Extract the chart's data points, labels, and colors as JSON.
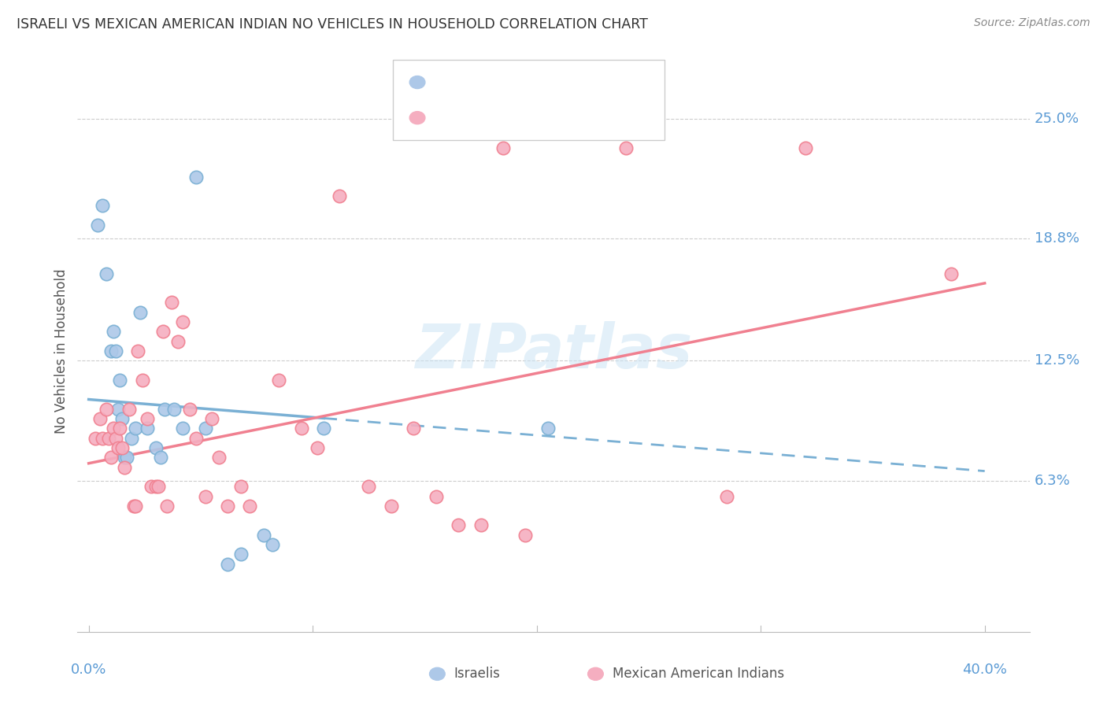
{
  "title": "ISRAELI VS MEXICAN AMERICAN INDIAN NO VEHICLES IN HOUSEHOLD CORRELATION CHART",
  "source": "Source: ZipAtlas.com",
  "ylabel": "No Vehicles in Household",
  "ytick_labels": [
    "6.3%",
    "12.5%",
    "18.8%",
    "25.0%"
  ],
  "ytick_values": [
    6.3,
    12.5,
    18.8,
    25.0
  ],
  "xlim": [
    -0.5,
    42.0
  ],
  "ylim": [
    -1.5,
    27.5
  ],
  "color_israeli": "#adc8e8",
  "color_mexican": "#f5aec0",
  "color_israeli_line": "#7ab0d4",
  "color_mexican_line": "#f08090",
  "watermark": "ZIPatlas",
  "isr_line_x0": 0.0,
  "isr_line_y0": 10.5,
  "isr_line_x1": 40.0,
  "isr_line_y1": 6.8,
  "mex_line_x0": 0.0,
  "mex_line_y0": 7.2,
  "mex_line_x1": 40.0,
  "mex_line_y1": 16.5,
  "israelis_x": [
    0.4,
    0.6,
    0.8,
    1.0,
    1.1,
    1.2,
    1.3,
    1.4,
    1.5,
    1.6,
    1.7,
    1.9,
    2.1,
    2.3,
    2.6,
    3.0,
    3.2,
    3.4,
    3.8,
    4.2,
    4.8,
    5.2,
    6.2,
    6.8,
    7.8,
    8.2,
    10.5,
    20.5
  ],
  "israelis_y": [
    19.5,
    20.5,
    17.0,
    13.0,
    14.0,
    13.0,
    10.0,
    11.5,
    9.5,
    7.5,
    7.5,
    8.5,
    9.0,
    15.0,
    9.0,
    8.0,
    7.5,
    10.0,
    10.0,
    9.0,
    22.0,
    9.0,
    2.0,
    2.5,
    3.5,
    3.0,
    9.0,
    9.0
  ],
  "mexican_x": [
    0.3,
    0.5,
    0.6,
    0.8,
    0.9,
    1.0,
    1.1,
    1.2,
    1.3,
    1.4,
    1.5,
    1.6,
    1.8,
    2.0,
    2.1,
    2.2,
    2.4,
    2.6,
    2.8,
    3.0,
    3.1,
    3.3,
    3.5,
    3.7,
    4.0,
    4.2,
    4.5,
    4.8,
    5.2,
    5.5,
    5.8,
    6.2,
    6.8,
    7.2,
    8.5,
    9.5,
    10.2,
    11.2,
    12.5,
    13.5,
    14.5,
    15.5,
    16.5,
    17.5,
    18.5,
    19.5,
    24.0,
    28.5,
    32.0,
    38.5
  ],
  "mexican_y": [
    8.5,
    9.5,
    8.5,
    10.0,
    8.5,
    7.5,
    9.0,
    8.5,
    8.0,
    9.0,
    8.0,
    7.0,
    10.0,
    5.0,
    5.0,
    13.0,
    11.5,
    9.5,
    6.0,
    6.0,
    6.0,
    14.0,
    5.0,
    15.5,
    13.5,
    14.5,
    10.0,
    8.5,
    5.5,
    9.5,
    7.5,
    5.0,
    6.0,
    5.0,
    11.5,
    9.0,
    8.0,
    21.0,
    6.0,
    5.0,
    9.0,
    5.5,
    4.0,
    4.0,
    23.5,
    3.5,
    23.5,
    5.5,
    23.5,
    17.0
  ]
}
